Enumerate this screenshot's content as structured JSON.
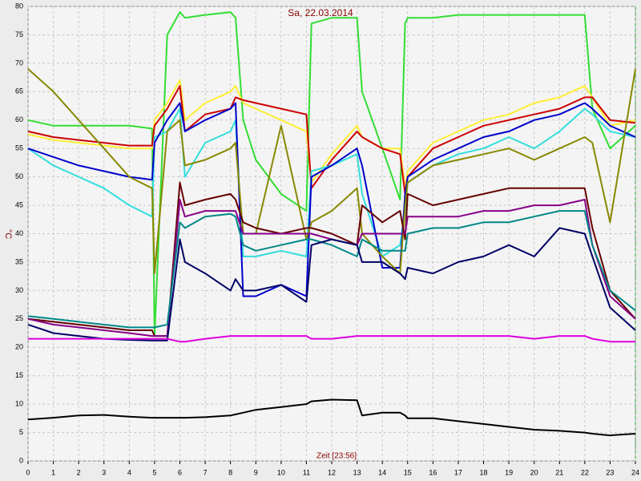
{
  "chart_data": {
    "type": "line",
    "title": "Sa, 22.03.2014",
    "xlabel": "Zeit [23:56]",
    "ylabel": "°C",
    "x": [
      0,
      1,
      2,
      3,
      4,
      4.9,
      5,
      5.5,
      6,
      6.2,
      7,
      8,
      8.2,
      8.5,
      9,
      10,
      11,
      11.2,
      12,
      13,
      13.2,
      14,
      14.7,
      14.9,
      15,
      16,
      17,
      18,
      19,
      20,
      21,
      22,
      22.3,
      23,
      24
    ],
    "xlim": [
      0,
      24
    ],
    "xticks": [
      0,
      1,
      2,
      3,
      4,
      5,
      6,
      7,
      8,
      9,
      10,
      11,
      12,
      13,
      14,
      15,
      16,
      17,
      18,
      19,
      20,
      21,
      22,
      23,
      24
    ],
    "ylim": [
      0,
      80
    ],
    "yticks": [
      0,
      5,
      10,
      15,
      20,
      25,
      30,
      35,
      40,
      45,
      50,
      55,
      60,
      65,
      70,
      75,
      80
    ],
    "grid": true,
    "series": [
      {
        "color": "#33dd33",
        "values": [
          60,
          59,
          59,
          59,
          59,
          58.5,
          22,
          75,
          79,
          78,
          78.5,
          79,
          78,
          60,
          53,
          47,
          44,
          77,
          78,
          78,
          65,
          55,
          46,
          77,
          78,
          78,
          78.5,
          78.5,
          78.5,
          78.5,
          78.5,
          78.5,
          62,
          55,
          59
        ]
      },
      {
        "color": "#ffee33",
        "values": [
          57.5,
          56.5,
          56,
          55.5,
          55,
          55,
          60,
          63,
          67,
          60,
          63,
          65,
          66,
          63,
          62,
          60,
          58,
          49,
          54,
          59,
          57,
          55,
          55,
          48,
          51,
          56,
          58,
          60,
          61,
          63,
          64,
          66,
          64,
          59,
          60
        ]
      },
      {
        "color": "#cc0000",
        "values": [
          58,
          57,
          56.5,
          56,
          55.5,
          55.5,
          59,
          62,
          66,
          58,
          61,
          62,
          64,
          63.5,
          63,
          62,
          61,
          48,
          53,
          58,
          57,
          55,
          54,
          47,
          50,
          55,
          57,
          59,
          60,
          61,
          62,
          64,
          64,
          60,
          59.5
        ]
      },
      {
        "color": "#33dddd",
        "values": [
          55,
          52,
          50,
          48,
          45,
          43,
          57,
          58,
          62,
          50,
          56,
          58,
          60,
          36,
          36,
          37,
          36,
          51,
          52,
          54,
          47,
          36,
          38,
          44,
          49,
          52,
          54,
          55,
          57,
          55,
          58,
          62,
          61,
          58,
          57
        ]
      },
      {
        "color": "#0000cc",
        "values": [
          55,
          53.5,
          52,
          51,
          50,
          49.5,
          56,
          60,
          63,
          58,
          60,
          62,
          63,
          29,
          29,
          31,
          29,
          50,
          52,
          55,
          52,
          34,
          34,
          47,
          50,
          53,
          55,
          57,
          58,
          60,
          61,
          63,
          62,
          59,
          57
        ]
      },
      {
        "color": "#888800",
        "values": [
          69,
          65,
          60,
          55,
          50,
          48,
          33,
          58,
          60,
          52,
          53,
          55,
          56,
          40,
          40,
          59,
          39,
          42,
          44,
          48,
          40,
          36,
          33,
          45,
          49,
          52,
          53,
          54,
          55,
          53,
          55,
          57,
          56,
          42,
          69
        ]
      },
      {
        "color": "#660000",
        "values": [
          25,
          24.5,
          24,
          23.5,
          23,
          23,
          22,
          22,
          49,
          45,
          46,
          47,
          46,
          42,
          41,
          40,
          41,
          41,
          40,
          38,
          45,
          42,
          44,
          39,
          47,
          45,
          46,
          47,
          48,
          48,
          48,
          48,
          41,
          30,
          25
        ]
      },
      {
        "color": "#880088",
        "values": [
          25,
          24,
          23.5,
          23,
          22.5,
          22,
          22,
          22,
          46,
          43,
          44,
          44,
          44,
          40,
          40,
          40,
          40,
          40,
          39,
          38,
          40,
          40,
          40,
          40,
          43,
          43,
          43,
          44,
          44,
          45,
          45,
          46,
          38,
          29,
          25
        ]
      },
      {
        "color": "#008888",
        "values": [
          25.5,
          25,
          24.5,
          24,
          23.5,
          23.5,
          23.5,
          24,
          42,
          41,
          43,
          43.5,
          43,
          38,
          37,
          38,
          39,
          39,
          38,
          36,
          39,
          37,
          37,
          37,
          40,
          41,
          41,
          42,
          42,
          43,
          44,
          44,
          38,
          30,
          26.5
        ]
      },
      {
        "color": "#000066",
        "values": [
          24,
          22.5,
          22,
          21.5,
          21.3,
          21.2,
          21.2,
          21.2,
          39,
          35,
          33,
          30,
          32,
          30,
          30,
          31,
          28,
          38,
          39,
          38,
          35,
          35,
          33,
          32,
          34,
          33,
          35,
          36,
          38,
          36,
          41,
          40,
          36,
          27,
          23
        ]
      },
      {
        "color": "#dd00dd",
        "values": [
          21.5,
          21.5,
          21.5,
          21.5,
          21.5,
          21.5,
          21.5,
          21.5,
          21,
          21,
          21.5,
          22,
          22,
          22,
          22,
          22,
          22,
          21.5,
          21.5,
          22,
          22,
          22,
          22,
          22,
          22,
          22,
          22,
          22,
          22,
          21.5,
          22,
          22,
          21.5,
          21,
          21
        ]
      },
      {
        "color": "#000000",
        "values": [
          7.3,
          7.6,
          8,
          8.1,
          7.8,
          7.6,
          7.6,
          7.6,
          7.6,
          7.6,
          7.7,
          8,
          8.2,
          8.5,
          9,
          9.5,
          10,
          10.5,
          10.8,
          10.7,
          8,
          8.5,
          8.5,
          8,
          7.5,
          7.5,
          7,
          6.5,
          6,
          5.5,
          5.3,
          5,
          4.8,
          4.5,
          4.8
        ]
      }
    ]
  }
}
